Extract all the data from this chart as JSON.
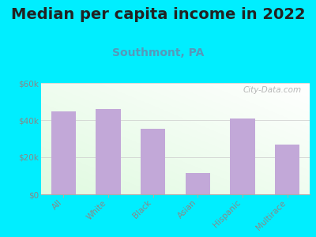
{
  "title": "Median per capita income in 2022",
  "subtitle": "Southmont, PA",
  "categories": [
    "All",
    "White",
    "Black",
    "Asian",
    "Hispanic",
    "Multirace"
  ],
  "values": [
    44500,
    46000,
    35500,
    11500,
    41000,
    27000
  ],
  "bar_color": "#c2a8d8",
  "background_outer": "#00eeff",
  "ylim": [
    0,
    60000
  ],
  "yticks": [
    0,
    20000,
    40000,
    60000
  ],
  "ytick_labels": [
    "$0",
    "$20k",
    "$40k",
    "$60k"
  ],
  "title_fontsize": 14,
  "subtitle_fontsize": 10,
  "subtitle_color": "#5599bb",
  "tick_label_color": "#888888",
  "title_color": "#222222",
  "watermark": "City-Data.com"
}
